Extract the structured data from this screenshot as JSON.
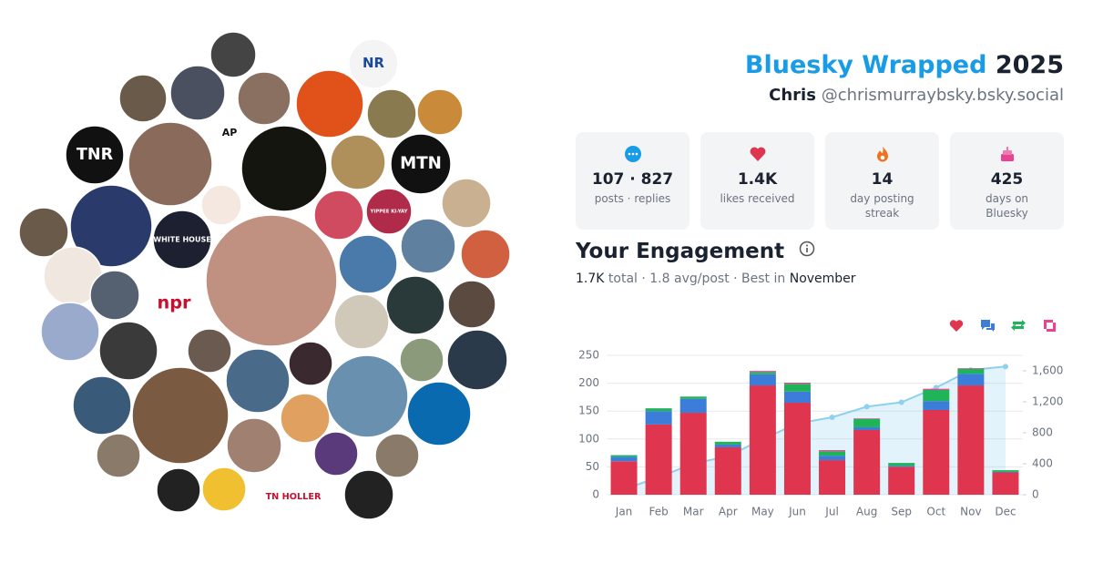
{
  "header": {
    "title_brand": "Bluesky Wrapped",
    "title_year": "2025",
    "name": "Chris",
    "handle": "@chrismurraybsky.bsky.social"
  },
  "stats": [
    {
      "value": "107 · 827",
      "label": "posts · replies"
    },
    {
      "value": "1.4K",
      "label": "likes received"
    },
    {
      "value": "14",
      "label": "day posting streak"
    },
    {
      "value": "425",
      "label": "days on Bluesky"
    }
  ],
  "engagement": {
    "title": "Your Engagement",
    "total": "1.7K",
    "middle": "total · 1.8 avg/post · Best in",
    "best": "November"
  },
  "avatars": {
    "labels": [
      "NR",
      "TNR",
      "AP",
      "MTN",
      "WHITE HOUSE",
      "YIPPEE KI-YAY",
      "npr",
      "TN HOLLER"
    ]
  },
  "chart_data": {
    "type": "bar",
    "stacked": true,
    "grid": true,
    "categories": [
      "Jan",
      "Feb",
      "Mar",
      "Apr",
      "May",
      "Jun",
      "Jul",
      "Aug",
      "Sep",
      "Oct",
      "Nov",
      "Dec"
    ],
    "series": [
      {
        "color": "#e0354e",
        "values": [
          60,
          126,
          147,
          85,
          196,
          165,
          62,
          116,
          50,
          152,
          196,
          40
        ]
      },
      {
        "color": "#3b7dd8",
        "values": [
          8,
          24,
          25,
          5,
          20,
          20,
          8,
          5,
          2,
          16,
          21,
          1
        ]
      },
      {
        "color": "#1fb35a",
        "values": [
          3,
          5,
          4,
          5,
          4,
          14,
          8,
          15,
          5,
          20,
          9,
          3
        ]
      },
      {
        "color": "#e84393",
        "values": [
          0,
          0,
          0,
          0,
          2,
          2,
          2,
          1,
          0,
          2,
          1,
          0
        ]
      },
      {
        "type": "line",
        "axis": "y2",
        "color": "#8fd0ef",
        "values": [
          71,
          226,
          402,
          497,
          719,
          920,
          1000,
          1137,
          1194,
          1384,
          1611,
          1655
        ]
      }
    ],
    "ylim": [
      0,
      250
    ],
    "yticks": [
      0,
      50,
      100,
      150,
      200,
      250
    ],
    "y2lim": [
      0,
      1800
    ],
    "y2ticks": [
      0,
      400,
      800,
      {
        "value": 1200,
        "label": "1,200"
      },
      {
        "value": 1600,
        "label": "1,600"
      }
    ]
  }
}
